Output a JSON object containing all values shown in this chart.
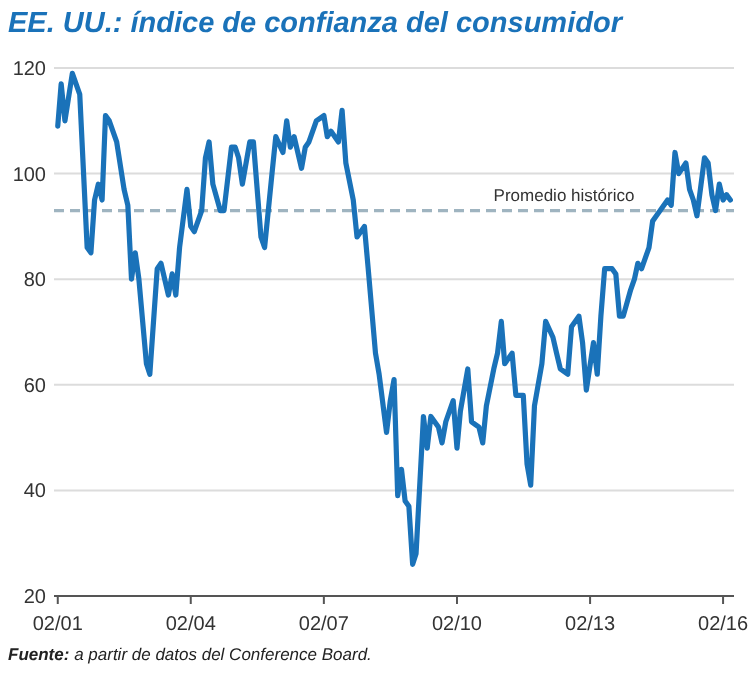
{
  "chart_data": {
    "type": "line",
    "title": "EE. UU.: índice de confianza del consumidor",
    "x": [
      "2001-02",
      "2001-03",
      "2001-04",
      "2001-06",
      "2001-08",
      "2001-10",
      "2001-11",
      "2001-12",
      "2002-01",
      "2002-02",
      "2002-03",
      "2002-04",
      "2002-06",
      "2002-08",
      "2002-09",
      "2002-10",
      "2002-11",
      "2002-12",
      "2003-02",
      "2003-03",
      "2003-05",
      "2003-06",
      "2003-08",
      "2003-09",
      "2003-10",
      "2003-11",
      "2004-01",
      "2004-02",
      "2004-03",
      "2004-05",
      "2004-06",
      "2004-07",
      "2004-08",
      "2004-10",
      "2004-11",
      "2005-01",
      "2005-02",
      "2005-03",
      "2005-04",
      "2005-06",
      "2005-07",
      "2005-09",
      "2005-10",
      "2005-12",
      "2006-01",
      "2006-03",
      "2006-04",
      "2006-05",
      "2006-06",
      "2006-08",
      "2006-09",
      "2006-10",
      "2006-12",
      "2007-02",
      "2007-03",
      "2007-04",
      "2007-06",
      "2007-07",
      "2007-08",
      "2007-10",
      "2007-11",
      "2008-01",
      "2008-02",
      "2008-04",
      "2008-05",
      "2008-07",
      "2008-08",
      "2008-09",
      "2008-10",
      "2008-11",
      "2008-12",
      "2009-01",
      "2009-02",
      "2009-03",
      "2009-05",
      "2009-06",
      "2009-07",
      "2009-09",
      "2009-10",
      "2009-11",
      "2010-01",
      "2010-02",
      "2010-03",
      "2010-05",
      "2010-06",
      "2010-08",
      "2010-09",
      "2010-10",
      "2010-12",
      "2011-01",
      "2011-02",
      "2011-03",
      "2011-05",
      "2011-06",
      "2011-08",
      "2011-09",
      "2011-10",
      "2011-11",
      "2012-01",
      "2012-02",
      "2012-04",
      "2012-05",
      "2012-06",
      "2012-08",
      "2012-09",
      "2012-11",
      "2012-12",
      "2013-01",
      "2013-03",
      "2013-04",
      "2013-05",
      "2013-06",
      "2013-08",
      "2013-09",
      "2013-10",
      "2013-11",
      "2014-01",
      "2014-02",
      "2014-03",
      "2014-04",
      "2014-06",
      "2014-07",
      "2014-08",
      "2014-09",
      "2014-11",
      "2014-12",
      "2015-01",
      "2015-02",
      "2015-04",
      "2015-05",
      "2015-06",
      "2015-07",
      "2015-09",
      "2015-10",
      "2015-11",
      "2015-12",
      "2016-01",
      "2016-02",
      "2016-03",
      "2016-04"
    ],
    "series": [
      {
        "color": "#1a72b9",
        "values": [
          109,
          117,
          110,
          119,
          115,
          86,
          85,
          95,
          98,
          95,
          111,
          110,
          106,
          97,
          94,
          80,
          85,
          80,
          64,
          62,
          82,
          83,
          77,
          81,
          77,
          86,
          97,
          90,
          89,
          93,
          103,
          106,
          98,
          93,
          93,
          105,
          105,
          103,
          98,
          106,
          106,
          88,
          86,
          100,
          107,
          104,
          110,
          105,
          107,
          101,
          105,
          106,
          110,
          111,
          107,
          108,
          106,
          112,
          102,
          95,
          88,
          90,
          82,
          66,
          62,
          51,
          57,
          61,
          39,
          44,
          38,
          37,
          26,
          28,
          54,
          48,
          54,
          52,
          49,
          53,
          57,
          48,
          55,
          63,
          53,
          52,
          49,
          56,
          63,
          66,
          72,
          64,
          66,
          58,
          58,
          45,
          41,
          56,
          64,
          72,
          69,
          66,
          63,
          62,
          71,
          73,
          68,
          59,
          68,
          62,
          73,
          82,
          82,
          81,
          73,
          73,
          78,
          80,
          83,
          82,
          86,
          91,
          92,
          93,
          95,
          94,
          104,
          100,
          102,
          97,
          95,
          92,
          103,
          102,
          96,
          93,
          98,
          95,
          96,
          95
        ]
      }
    ],
    "xlim": [
      "2001-01",
      "2016-05"
    ],
    "xticks": [
      {
        "value": "2001-02",
        "label": "02/01"
      },
      {
        "value": "2004-02",
        "label": "02/04"
      },
      {
        "value": "2007-02",
        "label": "02/07"
      },
      {
        "value": "2010-02",
        "label": "02/10"
      },
      {
        "value": "2013-02",
        "label": "02/13"
      },
      {
        "value": "2016-02",
        "label": "02/16"
      }
    ],
    "ylim": [
      20,
      120
    ],
    "yticks": [
      20,
      40,
      60,
      80,
      100,
      120
    ],
    "grid": "y",
    "ref_lines": [
      {
        "axis": "y",
        "value": 93,
        "label": "Promedio histórico",
        "color": "#9fb4c0",
        "line_style": "dashed"
      }
    ],
    "annotations": [
      "Fuente: a partir de datos del Conference Board."
    ]
  }
}
